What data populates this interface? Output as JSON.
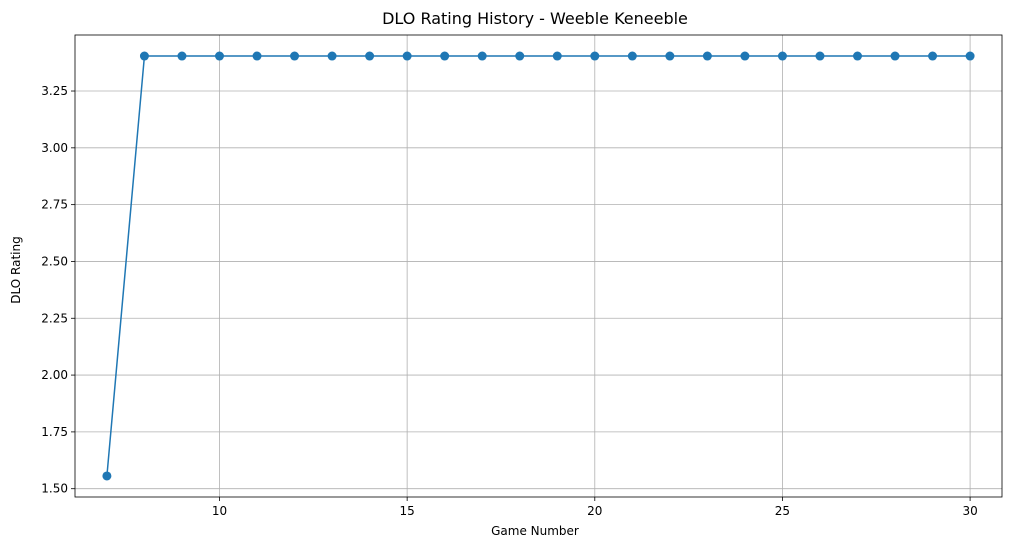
{
  "chart_data": {
    "type": "line",
    "title": "DLO Rating History - Weeble Keneeble",
    "xlabel": "Game Number",
    "ylabel": "DLO Rating",
    "xlim": [
      6.15,
      30.85
    ],
    "ylim": [
      1.4635,
      3.4965
    ],
    "xticks": [
      10,
      15,
      20,
      25,
      30
    ],
    "xtick_labels": [
      "10",
      "15",
      "20",
      "25",
      "30"
    ],
    "yticks": [
      1.5,
      1.75,
      2.0,
      2.25,
      2.5,
      2.75,
      3.0,
      3.25
    ],
    "ytick_labels": [
      "1.50",
      "1.75",
      "2.00",
      "2.25",
      "2.50",
      "2.75",
      "3.00",
      "3.25"
    ],
    "grid": true,
    "series": [
      {
        "color": "#1f77b4",
        "marker": "circle",
        "x": [
          7,
          8,
          9,
          10,
          11,
          12,
          13,
          14,
          15,
          16,
          17,
          18,
          19,
          20,
          21,
          22,
          23,
          24,
          25,
          26,
          27,
          28,
          29,
          30
        ],
        "y": [
          1.556,
          3.404,
          3.404,
          3.404,
          3.404,
          3.404,
          3.404,
          3.404,
          3.404,
          3.404,
          3.404,
          3.404,
          3.404,
          3.404,
          3.404,
          3.404,
          3.404,
          3.404,
          3.404,
          3.404,
          3.404,
          3.404,
          3.404,
          3.404
        ]
      }
    ]
  }
}
